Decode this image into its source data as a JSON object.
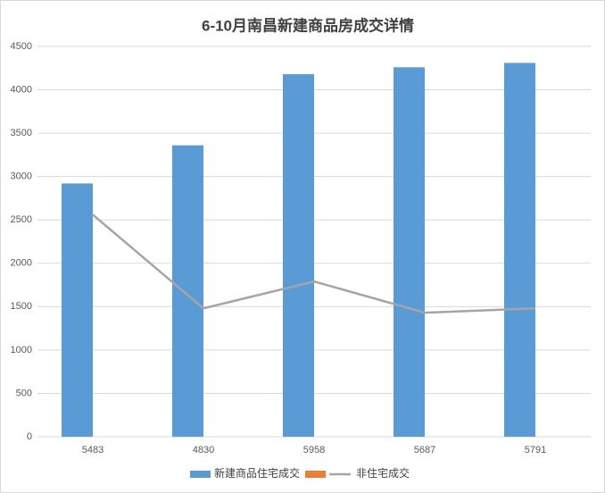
{
  "chart_data": {
    "type": "bar+line",
    "title": "6-10月南昌新建商品房成交详情",
    "categories": [
      "5483",
      "4830",
      "5958",
      "5687",
      "5791"
    ],
    "series": [
      {
        "name": "新建商品住宅成交",
        "type": "bar",
        "color": "#5b9bd5",
        "values": [
          2920,
          3360,
          4180,
          4260,
          4310
        ]
      },
      {
        "type": "bar",
        "color": "#ed7d31",
        "values": [
          null,
          null,
          null,
          null,
          null
        ]
      },
      {
        "name": "非住宅成交",
        "type": "line",
        "color": "#a5a5a5",
        "values": [
          2560,
          1480,
          1790,
          1430,
          1480
        ]
      }
    ],
    "ylim": [
      0,
      4500
    ],
    "yticks": [
      0,
      500,
      1000,
      1500,
      2000,
      2500,
      3000,
      3500,
      4000,
      4500
    ],
    "grid": true,
    "legend": "bottom"
  }
}
